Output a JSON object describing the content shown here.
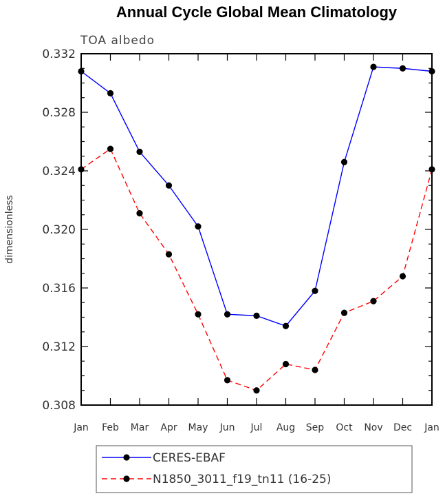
{
  "chart_data": {
    "type": "line",
    "title": "Annual Cycle Global Mean Climatology",
    "subtitle": "TOA albedo",
    "ylabel": "dimensionless",
    "xlabel": "",
    "categories": [
      "Jan",
      "Feb",
      "Mar",
      "Apr",
      "May",
      "Jun",
      "Jul",
      "Aug",
      "Sep",
      "Oct",
      "Nov",
      "Dec",
      "Jan"
    ],
    "ylim": [
      0.308,
      0.332
    ],
    "yticks": [
      "0.308",
      "0.312",
      "0.316",
      "0.320",
      "0.324",
      "0.328",
      "0.332"
    ],
    "grid": false,
    "legend_position": "bottom",
    "series": [
      {
        "name": "CERES-EBAF",
        "color": "#0000ff",
        "dash": "solid",
        "values": [
          0.3308,
          0.3293,
          0.3253,
          0.323,
          0.3202,
          0.3142,
          0.3141,
          0.3134,
          0.3158,
          0.3246,
          0.3311,
          0.331,
          0.3308
        ]
      },
      {
        "name": "N1850_3011_f19_tn11 (16-25)",
        "color": "#ff0000",
        "dash": "dashed",
        "values": [
          0.3241,
          0.3255,
          0.3211,
          0.3183,
          0.3142,
          0.3097,
          0.309,
          0.3108,
          0.3104,
          0.3143,
          0.3151,
          0.3168,
          0.3241
        ]
      }
    ]
  }
}
